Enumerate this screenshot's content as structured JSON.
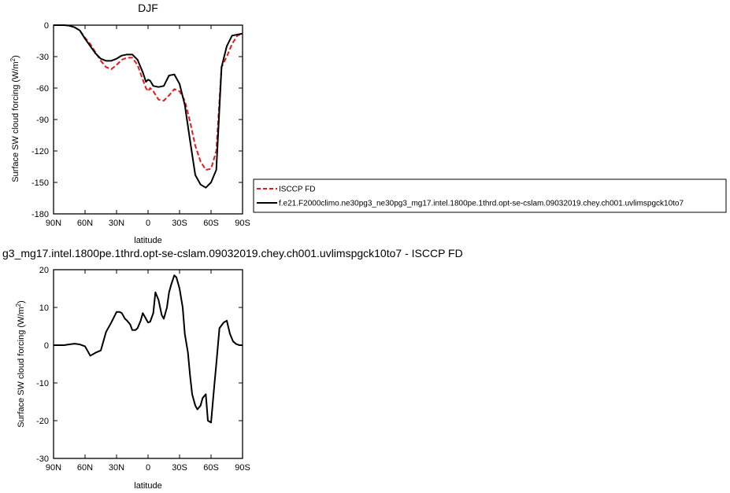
{
  "chart_data": [
    {
      "type": "line",
      "title": "DJF",
      "xlabel": "latitude",
      "ylabel": "Surface SW cloud forcing (W/m²)",
      "xlim": [
        90,
        -90
      ],
      "ylim": [
        -180,
        0
      ],
      "x_tick_values": [
        90,
        60,
        30,
        0,
        -30,
        -60,
        -90
      ],
      "x_tick_labels": [
        "90N",
        "60N",
        "30N",
        "0",
        "30S",
        "60S",
        "90S"
      ],
      "y_tick_values": [
        0,
        -30,
        -60,
        -90,
        -120,
        -150,
        -180
      ],
      "y_tick_labels": [
        "0",
        "-30",
        "-60",
        "-90",
        "-120",
        "-150",
        "-180"
      ],
      "legend": "right",
      "series": [
        {
          "name": "ISCCP FD",
          "color": "#e41a1c",
          "dash": "dashed",
          "x": [
            90,
            85,
            80,
            75,
            70,
            65,
            60,
            55,
            50,
            45,
            40,
            35,
            30,
            25,
            20,
            15,
            10,
            5,
            2,
            0,
            -2,
            -5,
            -10,
            -15,
            -20,
            -25,
            -30,
            -35,
            -40,
            -45,
            -50,
            -55,
            -60,
            -65,
            -70,
            -75,
            -80,
            -85,
            -90
          ],
          "y": [
            0,
            0,
            0,
            -0.5,
            -2,
            -5,
            -12,
            -18,
            -26,
            -34,
            -40,
            -42,
            -38,
            -33,
            -31,
            -31,
            -38,
            -52,
            -60,
            -63,
            -60,
            -63,
            -71,
            -72,
            -67,
            -61,
            -63,
            -72,
            -92,
            -115,
            -130,
            -138,
            -137,
            -120,
            -40,
            -30,
            -18,
            -10,
            -8
          ]
        },
        {
          "name": "f.e21.F2000climo.ne30pg3_ne30pg3_mg17.intel.1800pe.1thrd.opt-se-cslam.09032019.chey.ch001.uvlimspgck10to7",
          "color": "#000000",
          "dash": "solid",
          "x": [
            90,
            85,
            80,
            75,
            70,
            65,
            60,
            55,
            50,
            45,
            40,
            35,
            30,
            25,
            20,
            15,
            10,
            5,
            2,
            0,
            -2,
            -5,
            -10,
            -15,
            -20,
            -25,
            -30,
            -35,
            -40,
            -45,
            -50,
            -55,
            -60,
            -65,
            -70,
            -75,
            -80,
            -85,
            -90
          ],
          "y": [
            0,
            0,
            0,
            -0.5,
            -2,
            -5,
            -13,
            -20,
            -27,
            -32,
            -34,
            -34,
            -32,
            -29,
            -28,
            -28,
            -33,
            -45,
            -54,
            -52,
            -53,
            -58,
            -59,
            -58,
            -48,
            -47,
            -56,
            -76,
            -110,
            -143,
            -152,
            -155,
            -150,
            -138,
            -40,
            -20,
            -10,
            -9,
            -8
          ]
        }
      ]
    },
    {
      "type": "line",
      "title": "g3_mg17.intel.1800pe.1thrd.opt-se-cslam.09032019.chey.ch001.uvlimspgck10to7 - ISCCP FD",
      "xlabel": "latitude",
      "ylabel": "Surface SW cloud forcing (W/m²)",
      "xlim": [
        90,
        -90
      ],
      "ylim": [
        -30,
        20
      ],
      "x_tick_values": [
        90,
        60,
        30,
        0,
        -30,
        -60,
        -90
      ],
      "x_tick_labels": [
        "90N",
        "60N",
        "30N",
        "0",
        "30S",
        "60S",
        "90S"
      ],
      "y_tick_values": [
        20,
        10,
        0,
        -10,
        -20,
        -30
      ],
      "y_tick_labels": [
        "20",
        "10",
        "0",
        "-10",
        "-20",
        "-30"
      ],
      "series": [
        {
          "color": "#000000",
          "x": [
            90,
            85,
            80,
            75,
            70,
            65,
            60,
            55,
            50,
            45,
            40,
            35,
            30,
            27,
            25,
            22,
            20,
            17,
            15,
            12,
            10,
            7,
            5,
            2,
            0,
            -2,
            -5,
            -7,
            -10,
            -13,
            -15,
            -18,
            -20,
            -22,
            -25,
            -27,
            -30,
            -33,
            -35,
            -38,
            -40,
            -42,
            -45,
            -47,
            -50,
            -52,
            -55,
            -57,
            -60,
            -63,
            -65,
            -68,
            -72,
            -75,
            -78,
            -81,
            -84,
            -87,
            -90
          ],
          "y": [
            0,
            0,
            0,
            0.2,
            0.4,
            0.2,
            -0.3,
            -2.8,
            -2,
            -1.4,
            3.5,
            6,
            8.8,
            8.8,
            8.5,
            7,
            6.5,
            5.5,
            4,
            4,
            4.5,
            6.5,
            8.5,
            7,
            6,
            6.2,
            8.5,
            14,
            12,
            8,
            7,
            10,
            14,
            16,
            18.5,
            18,
            15,
            10,
            3,
            -2,
            -8,
            -13,
            -16,
            -17,
            -16,
            -14,
            -13,
            -20,
            -20.5,
            -11,
            -5,
            4.5,
            6,
            6.5,
            3,
            1,
            0.3,
            0,
            0
          ]
        }
      ]
    }
  ]
}
